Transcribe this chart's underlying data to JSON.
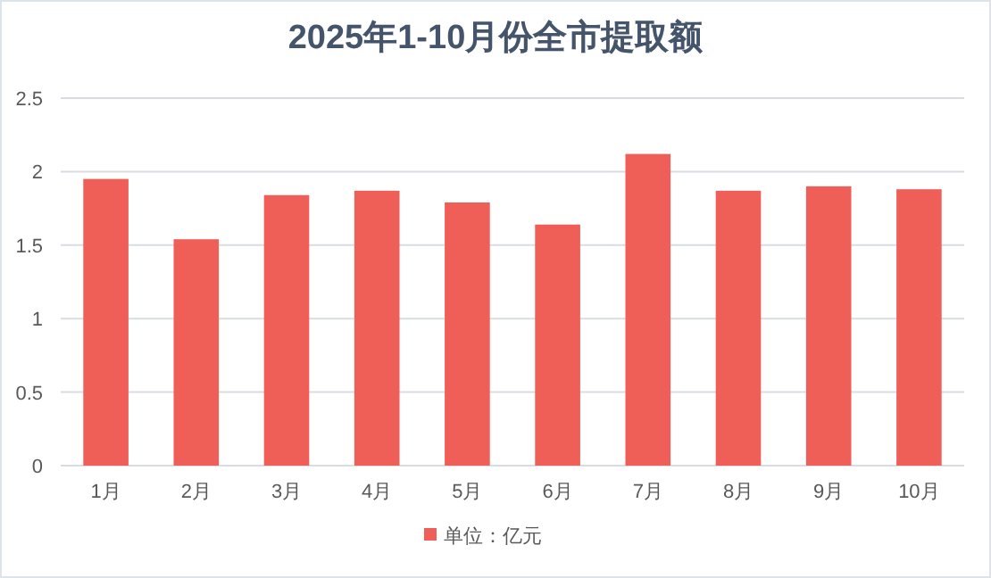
{
  "chart_data": {
    "type": "bar",
    "title": "2025年1-10月份全市提取额",
    "categories": [
      "1月",
      "2月",
      "3月",
      "4月",
      "5月",
      "6月",
      "7月",
      "8月",
      "9月",
      "10月"
    ],
    "series": [
      {
        "name": "单位：亿元",
        "color": "#ef5f57",
        "values": [
          1.95,
          1.54,
          1.84,
          1.87,
          1.79,
          1.64,
          2.12,
          1.87,
          1.9,
          1.88
        ]
      }
    ],
    "ylim": [
      0,
      2.5
    ],
    "yticks": [
      0,
      0.5,
      1,
      1.5,
      2,
      2.5
    ],
    "grid": "y",
    "legend": "bottom"
  }
}
